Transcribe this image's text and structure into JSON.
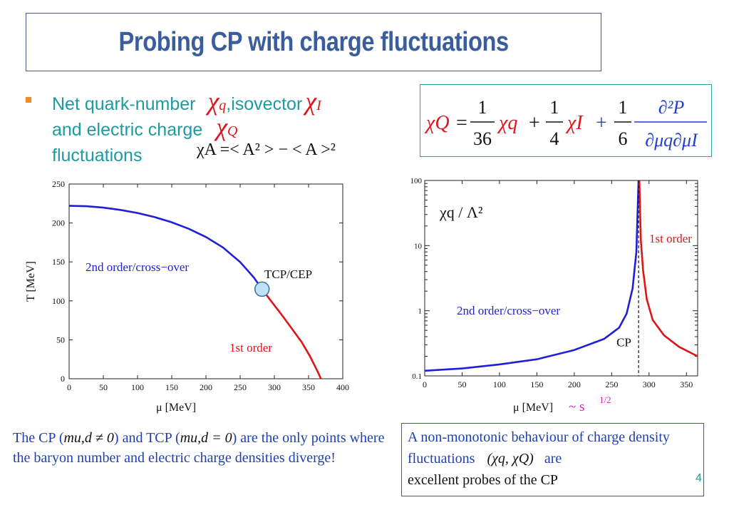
{
  "slide": {
    "title": "Probing CP with charge fluctuations",
    "page_number": "4"
  },
  "bullet": {
    "line1_text": "Net quark-number",
    "chi": "χ",
    "sub_q": "q",
    "line1_mid": ",isovector",
    "sub_I": "I",
    "line2_text": "and electric charge",
    "sub_Q": "Q",
    "line3_text": "fluctuations",
    "def_formula": "χA =< A² > − < A >²"
  },
  "formula": {
    "lhs": "χQ",
    "equals": "=",
    "frac1_num": "1",
    "frac1_den": "36",
    "term1": "χq",
    "plus1": "+",
    "frac2_num": "1",
    "frac2_den": "4",
    "term2": "χI",
    "plus2": "+",
    "frac3_num": "1",
    "frac3_den": "6",
    "frac4_num": "∂²P",
    "frac4_den": "∂μq∂μI"
  },
  "captions": {
    "left_a": "The CP (",
    "left_cond1": "mu,d ≠ 0",
    "left_b": ")  and TCP (",
    "left_cond2": "mu,d = 0",
    "left_c": ") are the only points where the baryon number     and electric charge densities  diverge!",
    "right_a": "A non-monotonic behaviour of  charge density fluctuations",
    "right_pair": "(χq, χQ)",
    "right_b": "are",
    "right_c": "excellent probes  of the CP"
  },
  "chart_data": [
    {
      "type": "line",
      "title": "",
      "xlabel": "μ  [MeV]",
      "ylabel": "T [MeV]",
      "xlim": [
        0,
        400
      ],
      "ylim": [
        0,
        250
      ],
      "xticks": [
        0,
        50,
        100,
        150,
        200,
        250,
        300,
        350,
        400
      ],
      "yticks": [
        0,
        50,
        100,
        150,
        200,
        250
      ],
      "series": [
        {
          "name": "2nd order/cross−over",
          "color": "#1f1fd8",
          "x": [
            0,
            25,
            50,
            75,
            100,
            125,
            150,
            175,
            200,
            225,
            250,
            270,
            282
          ],
          "y": [
            222,
            221.5,
            219.7,
            216.8,
            212.8,
            207.5,
            200.9,
            192.5,
            182,
            168.5,
            149.8,
            130,
            115
          ]
        },
        {
          "name": "1st order",
          "color": "#e01414",
          "x": [
            282,
            295,
            310,
            325,
            340,
            352,
            360,
            365,
            368
          ],
          "y": [
            115,
            100,
            83,
            65,
            47,
            29,
            15,
            6,
            0
          ]
        }
      ],
      "annotations": [
        {
          "text": "TCP/CEP",
          "x": 282,
          "y": 115,
          "marker": "circle",
          "fill": "#bfe0f7"
        }
      ],
      "grid": false,
      "legend": "inline labels"
    },
    {
      "type": "line",
      "title": "χq / Λ²",
      "xlabel": "μ  [MeV]",
      "xlabel_suffix": "~ s",
      "xlabel_suffix_exp": "1/2",
      "ylabel": "",
      "scale_y": "log",
      "xlim": [
        0,
        365
      ],
      "ylim": [
        0.1,
        100
      ],
      "xticks": [
        0,
        50,
        100,
        150,
        200,
        250,
        300,
        350
      ],
      "ytick_labels": [
        "0.1",
        "1",
        "10",
        "100"
      ],
      "series": [
        {
          "name": "2nd order/cross−over",
          "color": "#1f1fd8",
          "x": [
            0,
            50,
            100,
            150,
            200,
            240,
            260,
            270,
            278,
            283,
            286
          ],
          "y": [
            0.12,
            0.13,
            0.15,
            0.18,
            0.25,
            0.37,
            0.55,
            0.9,
            2.2,
            8,
            100
          ]
        },
        {
          "name": "1st order",
          "color": "#e01414",
          "x": [
            287,
            289,
            292,
            297,
            305,
            320,
            340,
            365
          ],
          "y": [
            100,
            12,
            4.2,
            1.5,
            0.72,
            0.42,
            0.28,
            0.2
          ]
        }
      ],
      "annotations": [
        {
          "text": "CP",
          "x": 286,
          "y": 0.3,
          "marker": "dashed vertical line"
        }
      ],
      "grid": false,
      "legend": "inline labels"
    }
  ]
}
